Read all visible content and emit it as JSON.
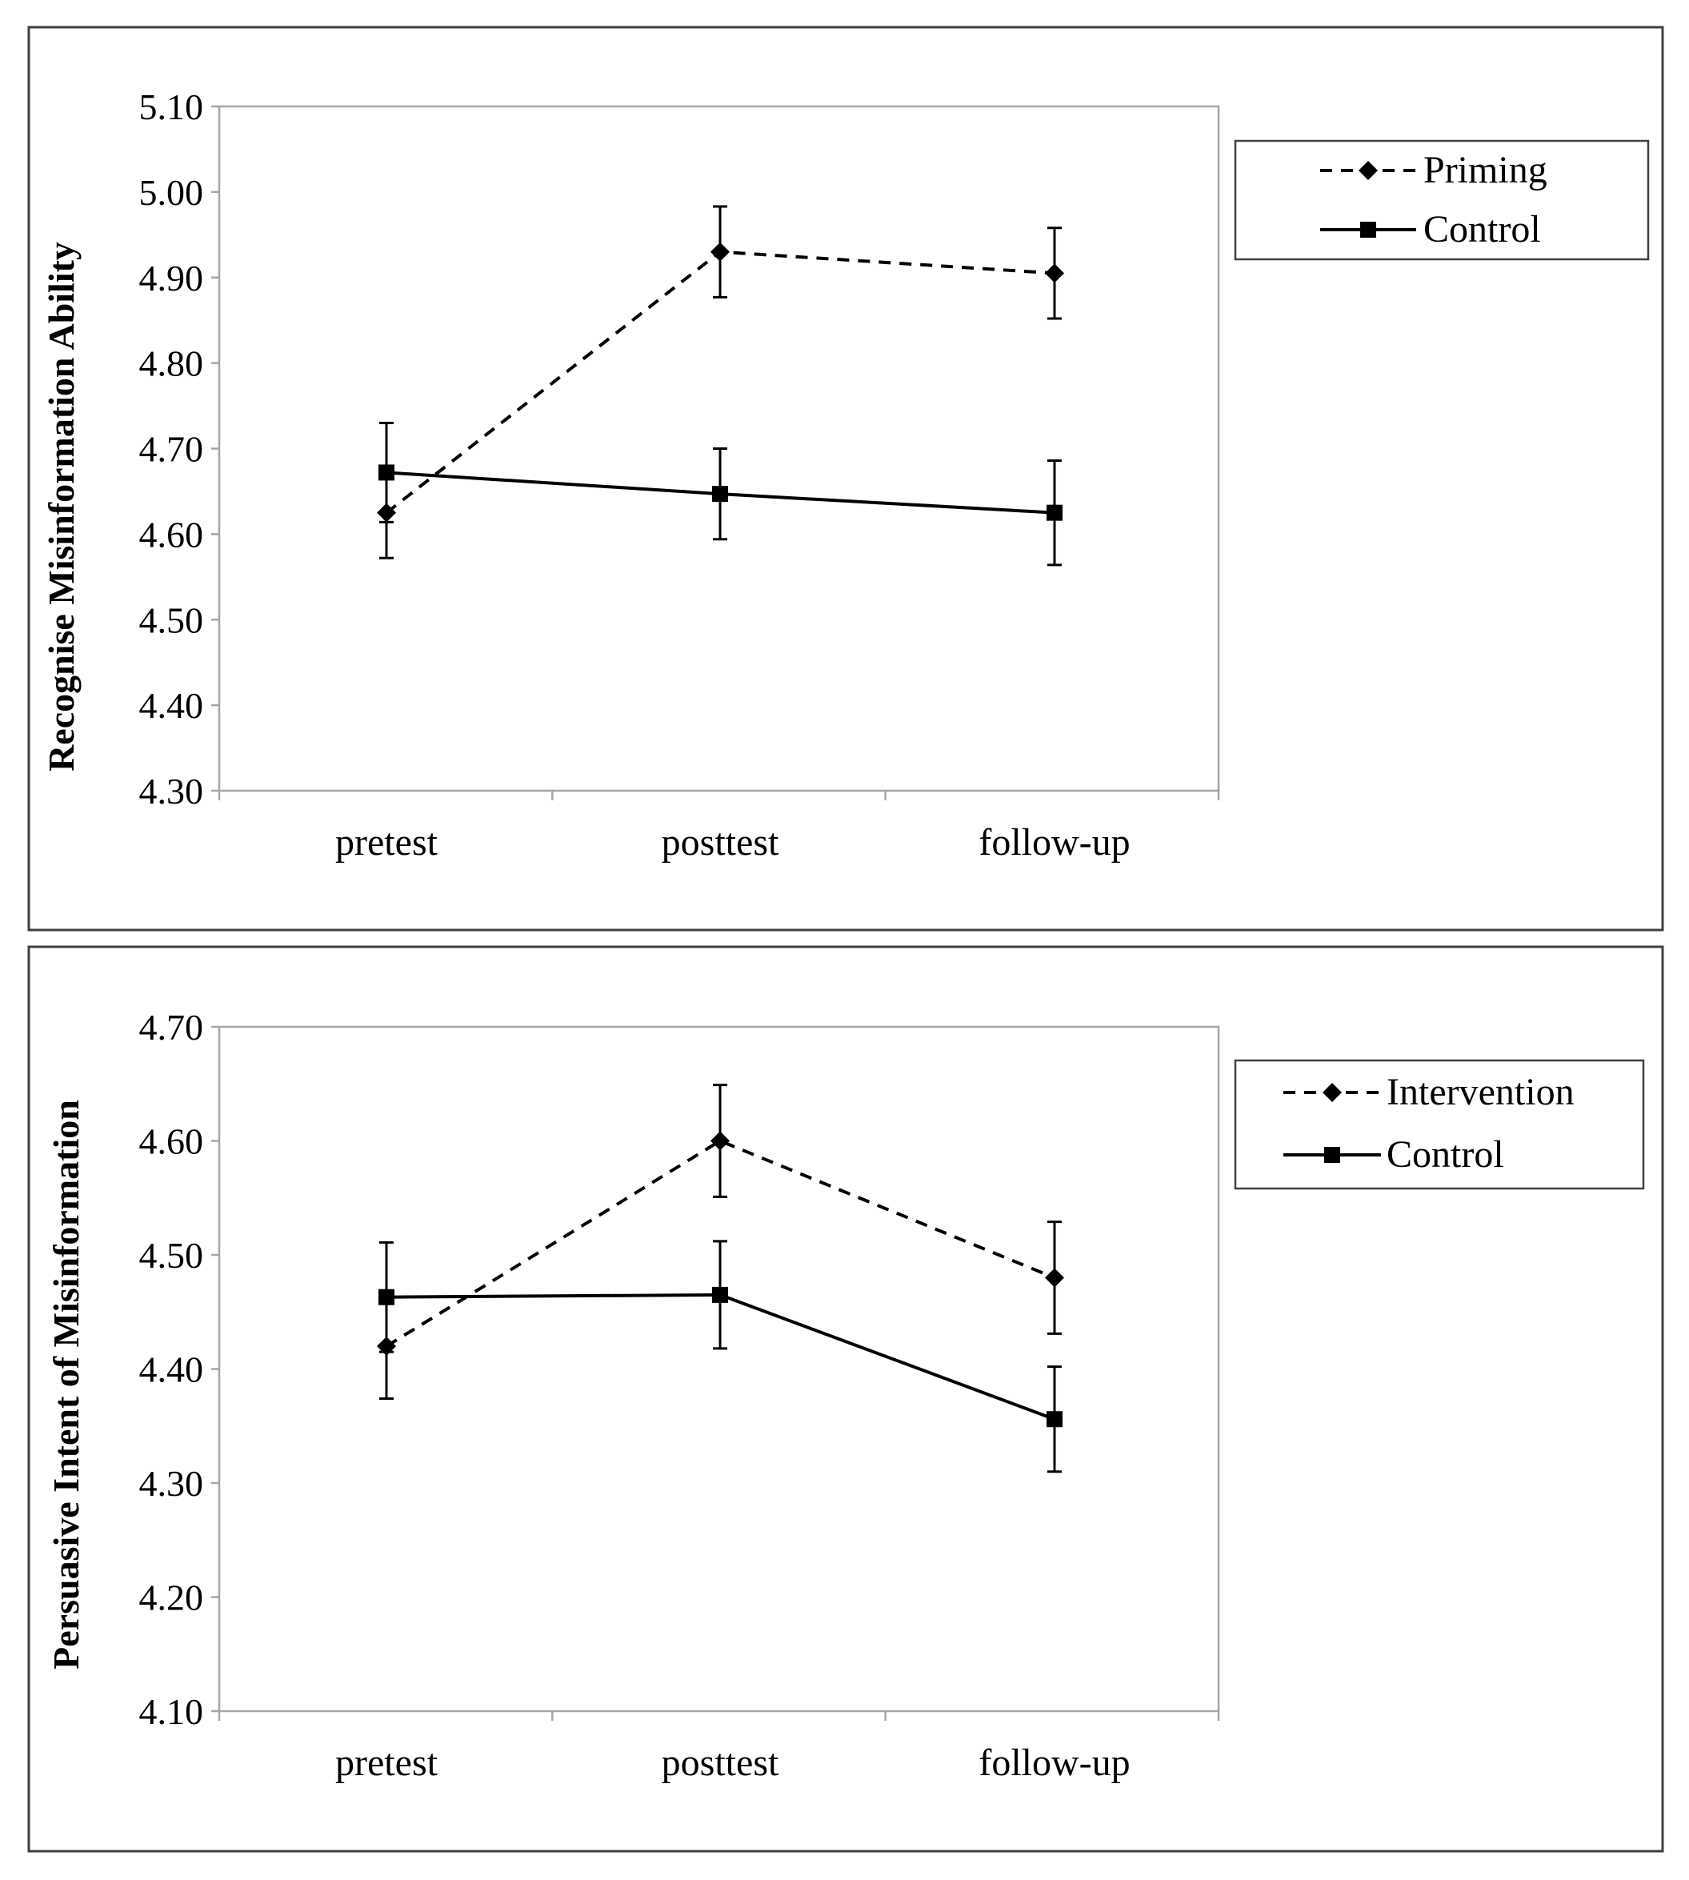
{
  "chart_data": [
    {
      "type": "line",
      "title": "",
      "xlabel": "",
      "ylabel": "Recognise Misinformation Ability",
      "categories": [
        "pretest",
        "posttest",
        "follow-up"
      ],
      "ylim": [
        4.3,
        5.1
      ],
      "yticks": [
        "4.30",
        "4.40",
        "4.50",
        "4.60",
        "4.70",
        "4.80",
        "4.90",
        "5.00",
        "5.10"
      ],
      "legend_position": "right",
      "series": [
        {
          "name": "Priming",
          "style": "dashed",
          "marker": "diamond",
          "values": [
            4.625,
            4.93,
            4.905
          ],
          "errors": [
            0.053,
            0.053,
            0.053
          ]
        },
        {
          "name": "Control",
          "style": "solid",
          "marker": "square",
          "values": [
            4.672,
            4.647,
            4.625
          ],
          "errors": [
            0.058,
            0.053,
            0.061
          ]
        }
      ]
    },
    {
      "type": "line",
      "title": "",
      "xlabel": "",
      "ylabel": "Persuasive Intent of Misinformation",
      "categories": [
        "pretest",
        "posttest",
        "follow-up"
      ],
      "ylim": [
        4.1,
        4.7
      ],
      "yticks": [
        "4.10",
        "4.20",
        "4.30",
        "4.40",
        "4.50",
        "4.60",
        "4.70"
      ],
      "legend_position": "right",
      "series": [
        {
          "name": "Intervention",
          "style": "dashed",
          "marker": "diamond",
          "values": [
            4.42,
            4.6,
            4.48
          ],
          "errors": [
            0.046,
            0.049,
            0.049
          ]
        },
        {
          "name": "Control",
          "style": "solid",
          "marker": "square",
          "values": [
            4.463,
            4.465,
            4.356
          ],
          "errors": [
            0.048,
            0.047,
            0.046
          ]
        }
      ]
    }
  ]
}
